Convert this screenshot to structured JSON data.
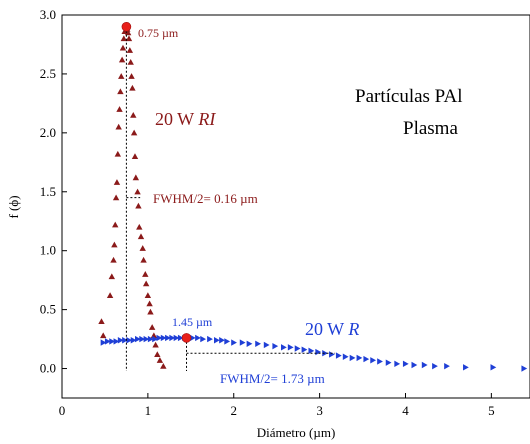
{
  "chart_data": {
    "type": "scatter",
    "title": "",
    "xlabel": "Diámetro  (µm)",
    "ylabel": "f (ϕ)",
    "xlim": [
      0,
      5.45
    ],
    "ylim": [
      -0.25,
      3.0
    ],
    "xticks": [
      0,
      1,
      2,
      3,
      4,
      5
    ],
    "yticks": [
      0.0,
      0.5,
      1.0,
      1.5,
      2.0,
      2.5,
      3.0
    ],
    "xtick_labels": [
      "0",
      "1",
      "2",
      "3",
      "4",
      "5"
    ],
    "ytick_labels": [
      "0.0",
      "0.5",
      "1.0",
      "1.5",
      "2.0",
      "2.5",
      "3.0"
    ],
    "grid": false,
    "annotation_text": {
      "title_line1": "Partículas PAl",
      "title_line2": "Plasma",
      "ri_label": "20 W ",
      "ri_label_italic": "RI",
      "r_label": "20 W ",
      "r_label_italic": "R",
      "ri_peak": "0.75 µm",
      "r_peak": "1.45 µm",
      "ri_fwhm": "FWHM/2= 0.16 µm",
      "r_fwhm": "FWHM/2= 1.73 µm"
    },
    "colors": {
      "ri": "#8b1a1a",
      "r": "#1f3fd6",
      "peak_marker": "#e8201a",
      "axis": "#000000"
    },
    "series": [
      {
        "name": "20 W RI",
        "marker": "triangle-up",
        "peak": {
          "x": 0.75,
          "y": 2.9
        },
        "fwhm_half": 0.16,
        "points": [
          [
            0.46,
            0.4
          ],
          [
            0.48,
            0.28
          ],
          [
            0.56,
            0.62
          ],
          [
            0.58,
            0.78
          ],
          [
            0.6,
            0.92
          ],
          [
            0.61,
            1.05
          ],
          [
            0.62,
            1.22
          ],
          [
            0.63,
            1.45
          ],
          [
            0.64,
            1.58
          ],
          [
            0.65,
            1.82
          ],
          [
            0.66,
            2.05
          ],
          [
            0.67,
            2.2
          ],
          [
            0.68,
            2.35
          ],
          [
            0.69,
            2.48
          ],
          [
            0.7,
            2.62
          ],
          [
            0.71,
            2.72
          ],
          [
            0.72,
            2.8
          ],
          [
            0.73,
            2.86
          ],
          [
            0.74,
            2.9
          ],
          [
            0.75,
            2.9
          ],
          [
            0.76,
            2.88
          ],
          [
            0.77,
            2.85
          ],
          [
            0.78,
            2.8
          ],
          [
            0.79,
            2.7
          ],
          [
            0.8,
            2.6
          ],
          [
            0.81,
            2.48
          ],
          [
            0.82,
            2.38
          ],
          [
            0.83,
            2.15
          ],
          [
            0.84,
            2.0
          ],
          [
            0.85,
            1.8
          ],
          [
            0.86,
            1.62
          ],
          [
            0.88,
            1.5
          ],
          [
            0.89,
            1.38
          ],
          [
            0.9,
            1.2
          ],
          [
            0.92,
            1.12
          ],
          [
            0.94,
            1.02
          ],
          [
            0.95,
            0.92
          ],
          [
            0.97,
            0.8
          ],
          [
            0.98,
            0.72
          ],
          [
            1.0,
            0.62
          ],
          [
            1.02,
            0.55
          ],
          [
            1.03,
            0.48
          ],
          [
            1.05,
            0.35
          ],
          [
            1.07,
            0.28
          ],
          [
            1.09,
            0.2
          ],
          [
            1.11,
            0.12
          ],
          [
            1.14,
            0.07
          ],
          [
            1.18,
            0.02
          ]
        ]
      },
      {
        "name": "20 W R",
        "marker": "triangle-right",
        "peak": {
          "x": 1.45,
          "y": 0.26
        },
        "fwhm_half": 1.73,
        "points": [
          [
            0.48,
            0.22
          ],
          [
            0.53,
            0.23
          ],
          [
            0.58,
            0.23
          ],
          [
            0.63,
            0.23
          ],
          [
            0.68,
            0.24
          ],
          [
            0.73,
            0.24
          ],
          [
            0.78,
            0.24
          ],
          [
            0.83,
            0.24
          ],
          [
            0.88,
            0.25
          ],
          [
            0.93,
            0.25
          ],
          [
            0.98,
            0.25
          ],
          [
            1.03,
            0.25
          ],
          [
            1.08,
            0.25
          ],
          [
            1.13,
            0.26
          ],
          [
            1.18,
            0.26
          ],
          [
            1.23,
            0.26
          ],
          [
            1.28,
            0.26
          ],
          [
            1.33,
            0.26
          ],
          [
            1.38,
            0.26
          ],
          [
            1.43,
            0.26
          ],
          [
            1.52,
            0.26
          ],
          [
            1.58,
            0.26
          ],
          [
            1.64,
            0.25
          ],
          [
            1.72,
            0.25
          ],
          [
            1.8,
            0.24
          ],
          [
            1.86,
            0.24
          ],
          [
            1.92,
            0.23
          ],
          [
            2.0,
            0.22
          ],
          [
            2.1,
            0.22
          ],
          [
            2.18,
            0.21
          ],
          [
            2.28,
            0.21
          ],
          [
            2.38,
            0.2
          ],
          [
            2.48,
            0.19
          ],
          [
            2.58,
            0.18
          ],
          [
            2.66,
            0.18
          ],
          [
            2.74,
            0.17
          ],
          [
            2.82,
            0.16
          ],
          [
            2.9,
            0.15
          ],
          [
            2.98,
            0.14
          ],
          [
            3.06,
            0.13
          ],
          [
            3.14,
            0.12
          ],
          [
            3.22,
            0.11
          ],
          [
            3.3,
            0.1
          ],
          [
            3.38,
            0.09
          ],
          [
            3.46,
            0.09
          ],
          [
            3.54,
            0.08
          ],
          [
            3.62,
            0.07
          ],
          [
            3.7,
            0.06
          ],
          [
            3.8,
            0.05
          ],
          [
            3.9,
            0.04
          ],
          [
            4.0,
            0.04
          ],
          [
            4.1,
            0.03
          ],
          [
            4.22,
            0.03
          ],
          [
            4.34,
            0.02
          ],
          [
            4.48,
            0.02
          ],
          [
            4.7,
            0.01
          ],
          [
            5.02,
            0.01
          ],
          [
            5.38,
            0.0
          ]
        ]
      }
    ]
  }
}
